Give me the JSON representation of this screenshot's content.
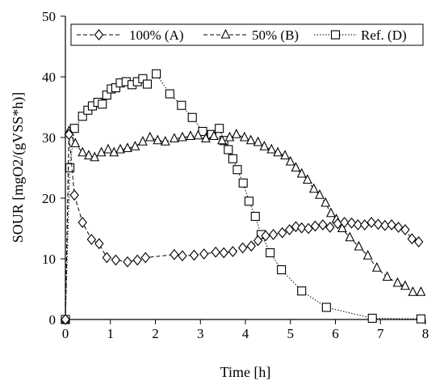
{
  "chart_data": {
    "type": "line",
    "xlabel": "Time [h]",
    "ylabel": "SOUR [mgO2/(gVSS*h)]",
    "xlim": [
      0,
      8
    ],
    "ylim": [
      0,
      50
    ],
    "x_ticks": [
      "0",
      "1",
      "2",
      "3",
      "4",
      "5",
      "6",
      "7",
      "8"
    ],
    "y_ticks": [
      "0",
      "10",
      "20",
      "30",
      "40",
      "50"
    ],
    "grid": false,
    "legend_position": "top",
    "series": [
      {
        "name": "100% (A)",
        "marker": "diamond",
        "line_style": "dashed",
        "color": "#000000",
        "x": [
          0,
          0.08,
          0.2,
          0.38,
          0.58,
          0.75,
          0.92,
          1.12,
          1.38,
          1.6,
          1.78,
          2.42,
          2.6,
          2.86,
          3.08,
          3.34,
          3.52,
          3.72,
          3.94,
          4.13,
          4.28,
          4.45,
          4.62,
          4.82,
          4.98,
          5.12,
          5.25,
          5.4,
          5.55,
          5.72,
          5.88,
          6.05,
          6.2,
          6.36,
          6.5,
          6.65,
          6.8,
          6.95,
          7.1,
          7.25,
          7.4,
          7.55,
          7.7,
          7.85
        ],
        "y": [
          0,
          30.5,
          20.5,
          16,
          13.2,
          12.5,
          10.2,
          9.8,
          9.5,
          9.8,
          10.2,
          10.7,
          10.5,
          10.6,
          10.8,
          11.1,
          11,
          11.2,
          11.8,
          12.1,
          13,
          13.8,
          14,
          14.3,
          14.8,
          15.3,
          15.1,
          15,
          15.4,
          15.6,
          15.2,
          15.8,
          16,
          15.9,
          15.6,
          15.6,
          16,
          15.7,
          15.5,
          15.6,
          15.2,
          14.8,
          13.3,
          12.8
        ]
      },
      {
        "name": "50% (B)",
        "marker": "triangle",
        "line_style": "dashed",
        "color": "#000000",
        "x": [
          0,
          0.08,
          0.22,
          0.38,
          0.52,
          0.65,
          0.8,
          0.95,
          1.08,
          1.22,
          1.38,
          1.55,
          1.72,
          1.88,
          2.05,
          2.22,
          2.42,
          2.6,
          2.78,
          2.95,
          3.12,
          3.3,
          3.48,
          3.65,
          3.8,
          3.98,
          4.12,
          4.28,
          4.42,
          4.58,
          4.72,
          4.88,
          5.0,
          5.12,
          5.25,
          5.38,
          5.52,
          5.65,
          5.78,
          5.9,
          6.02,
          6.15,
          6.32,
          6.52,
          6.72,
          6.92,
          7.15,
          7.38,
          7.55,
          7.72,
          7.9
        ],
        "y": [
          0,
          31,
          29,
          27.5,
          27,
          26.7,
          27.5,
          28,
          27.5,
          28,
          28.2,
          28.5,
          29.3,
          30,
          29.5,
          29.3,
          29.8,
          30,
          30.2,
          30.3,
          29.8,
          30.2,
          29.5,
          30,
          30.5,
          30,
          29.5,
          29.2,
          28.5,
          28,
          27.5,
          27,
          26,
          25,
          24,
          23,
          21.5,
          20.5,
          19.2,
          17.5,
          16.5,
          15,
          13.5,
          12,
          10.5,
          8.5,
          7,
          6,
          5.5,
          4.5,
          4.5
        ]
      },
      {
        "name": "Ref. (D)",
        "marker": "square",
        "line_style": "dotted",
        "color": "#000000",
        "x": [
          0,
          0.1,
          0.2,
          0.38,
          0.5,
          0.6,
          0.72,
          0.82,
          0.92,
          1.02,
          1.12,
          1.22,
          1.35,
          1.48,
          1.6,
          1.72,
          1.82,
          2.02,
          2.32,
          2.58,
          2.82,
          3.05,
          3.25,
          3.42,
          3.52,
          3.62,
          3.72,
          3.82,
          3.95,
          4.08,
          4.22,
          4.35,
          4.55,
          4.8,
          5.25,
          5.8,
          6.82,
          7.9
        ],
        "y": [
          0,
          25,
          31.5,
          33.5,
          34.5,
          35.2,
          35.8,
          35.5,
          37,
          38,
          38.2,
          39,
          39.2,
          38.7,
          39.2,
          39.7,
          38.8,
          40.5,
          37.2,
          35.3,
          33.3,
          31,
          30.5,
          31.5,
          29.5,
          28,
          26.5,
          24.7,
          22.5,
          19.5,
          17,
          14,
          11,
          8.2,
          4.7,
          2,
          0.2,
          0.1
        ]
      }
    ]
  }
}
